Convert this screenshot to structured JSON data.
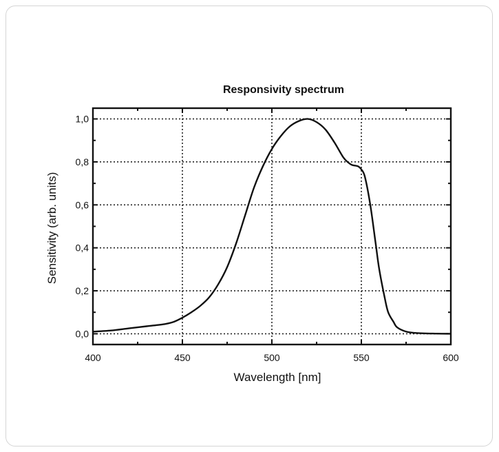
{
  "chart_data": {
    "type": "line",
    "title": "Responsivity spectrum",
    "xlabel": "Wavelength [nm]",
    "ylabel": "Sensitivity (arb. units)",
    "xlim": [
      400,
      600
    ],
    "ylim": [
      -0.05,
      1.05
    ],
    "x_ticks": [
      400,
      450,
      500,
      550,
      600
    ],
    "x_tick_labels": [
      "400",
      "450",
      "500",
      "550",
      "600"
    ],
    "y_ticks": [
      0.0,
      0.2,
      0.4,
      0.6,
      0.8,
      1.0
    ],
    "y_tick_labels": [
      "0,0",
      "0,2",
      "0,4",
      "0,6",
      "0,8",
      "1,0"
    ],
    "grid": true,
    "series": [
      {
        "x": [
          400,
          410,
          420,
          430,
          440,
          445,
          450,
          455,
          460,
          465,
          470,
          475,
          480,
          485,
          490,
          495,
          500,
          505,
          510,
          515,
          520,
          525,
          530,
          535,
          540,
          543,
          545,
          548,
          550,
          552,
          555,
          558,
          560,
          563,
          565,
          568,
          570,
          575,
          580,
          590,
          600
        ],
        "y": [
          0.01,
          0.015,
          0.025,
          0.035,
          0.045,
          0.055,
          0.075,
          0.1,
          0.13,
          0.17,
          0.23,
          0.31,
          0.42,
          0.55,
          0.68,
          0.78,
          0.86,
          0.92,
          0.965,
          0.99,
          1.0,
          0.985,
          0.95,
          0.89,
          0.82,
          0.795,
          0.785,
          0.78,
          0.765,
          0.73,
          0.6,
          0.42,
          0.3,
          0.17,
          0.1,
          0.055,
          0.03,
          0.01,
          0.004,
          0.001,
          0.0
        ]
      }
    ]
  }
}
